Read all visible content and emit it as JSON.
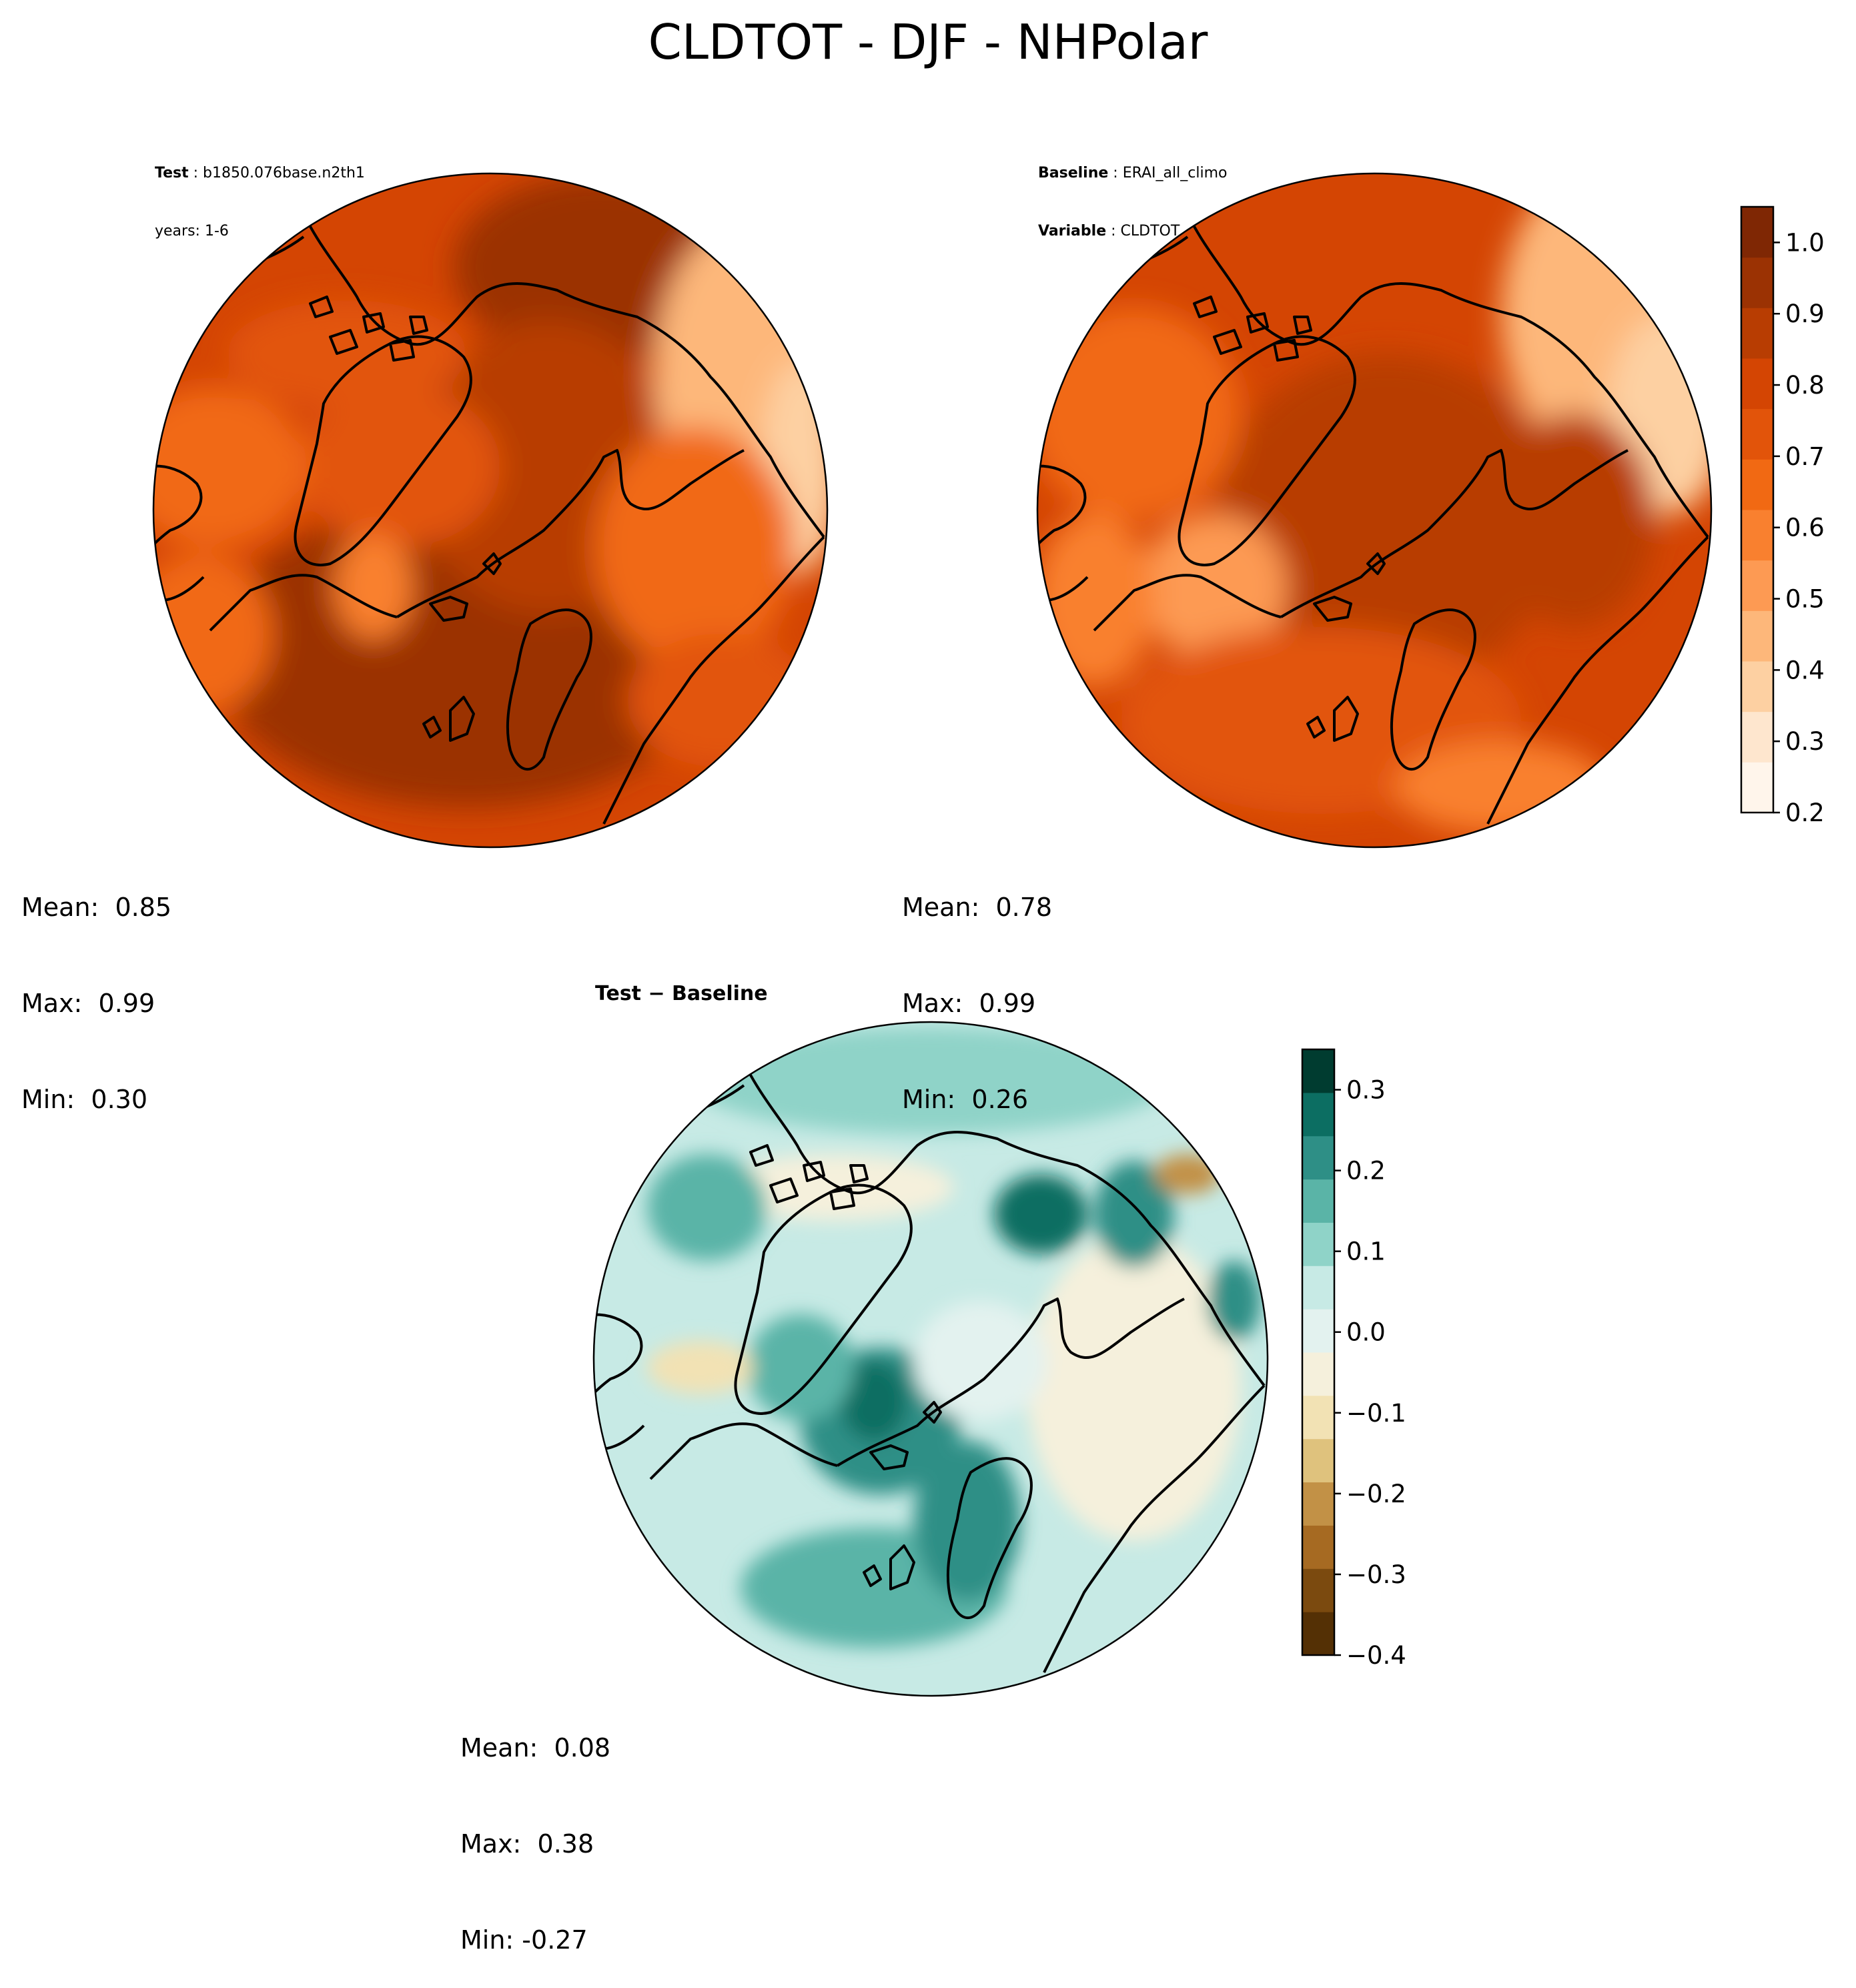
{
  "figure": {
    "title": "CLDTOT - DJF - NHPolar"
  },
  "panels": [
    {
      "header": [
        {
          "key": "Test",
          "value": "b1850.076base.n2th1"
        },
        {
          "key": "",
          "value": "years: 1-6"
        }
      ],
      "stats": {
        "mean": "Mean:  0.85",
        "max": "Max:  0.99",
        "min": "Min:  0.30"
      }
    },
    {
      "header": [
        {
          "key": "Baseline",
          "value": "ERAI_all_climo"
        },
        {
          "key": "Variable",
          "value": "CLDTOT"
        }
      ],
      "stats": {
        "mean": "Mean:  0.78",
        "max": "Max:  0.99",
        "min": "Min:  0.26"
      }
    },
    {
      "title": "Test − Baseline",
      "stats": {
        "mean": "Mean:  0.08",
        "max": "Max:  0.38",
        "min": "Min: -0.27"
      }
    }
  ],
  "colorbars": {
    "field": {
      "colormap": "Oranges",
      "range": [
        0.2,
        1.05
      ],
      "ticks": [
        "0.2",
        "0.3",
        "0.4",
        "0.5",
        "0.6",
        "0.7",
        "0.8",
        "0.9",
        "1.0"
      ],
      "colors": [
        "#fff5eb",
        "#fee6ce",
        "#fdd0a2",
        "#fdb77a",
        "#fd9a53",
        "#f9802f",
        "#f16913",
        "#e2540a",
        "#d44503",
        "#b83d02",
        "#9b3203",
        "#7f2704"
      ]
    },
    "difference": {
      "colormap": "BrBG",
      "range": [
        -0.4,
        0.35
      ],
      "ticks": [
        "−0.4",
        "−0.3",
        "−0.2",
        "−0.1",
        "0.0",
        "0.1",
        "0.2",
        "0.3"
      ],
      "colors": [
        "#543005",
        "#7b4a0f",
        "#a66a22",
        "#c29146",
        "#dfc27d",
        "#f2e2b4",
        "#f5f0dc",
        "#e3f2ef",
        "#c7eae5",
        "#8fd3c8",
        "#5ab4a7",
        "#2e8f86",
        "#0c6e62",
        "#003c30"
      ]
    }
  }
}
